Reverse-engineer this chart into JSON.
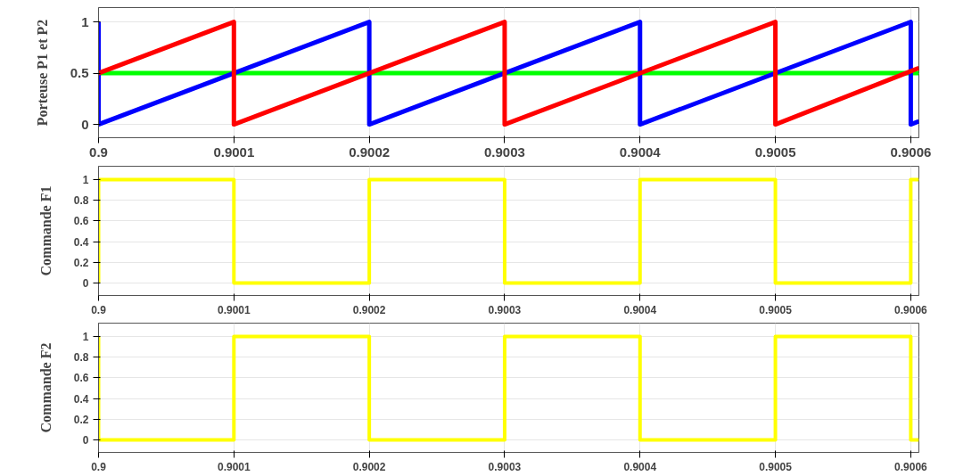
{
  "chart_data": [
    {
      "type": "line",
      "ylabel": "Porteuse P1 et P2",
      "xlim": [
        0.9,
        0.900606
      ],
      "ylim": [
        -0.13,
        1.14
      ],
      "xticks": [
        0.9,
        0.9001,
        0.9002,
        0.9003,
        0.9004,
        0.9005,
        0.9006
      ],
      "yticks": [
        0,
        0.5,
        1
      ],
      "grid": true,
      "line_style": "solid",
      "series": [
        {
          "color": "#00ff00",
          "x": [
            0.9,
            0.900606
          ],
          "values": [
            0.5,
            0.5
          ]
        },
        {
          "color": "#0000ff",
          "x": [
            0.9,
            0.9,
            0.9002,
            0.9002,
            0.9004,
            0.9004,
            0.9006,
            0.9006,
            0.900606
          ],
          "values": [
            1,
            0,
            1,
            0,
            1,
            0,
            1,
            0,
            0.03
          ]
        },
        {
          "color": "#ff0000",
          "x": [
            0.9,
            0.9001,
            0.9001,
            0.9003,
            0.9003,
            0.9005,
            0.9005,
            0.900606
          ],
          "values": [
            0.5,
            1,
            0,
            1,
            0,
            1,
            0,
            0.55
          ]
        }
      ]
    },
    {
      "type": "line",
      "ylabel": "Commande F1",
      "xlim": [
        0.9,
        0.900606
      ],
      "ylim": [
        -0.12,
        1.13
      ],
      "xticks": [
        0.9,
        0.9001,
        0.9002,
        0.9003,
        0.9004,
        0.9005,
        0.9006
      ],
      "yticks": [
        0,
        0.2,
        0.4,
        0.6,
        0.8,
        1
      ],
      "grid": true,
      "line_style": "solid",
      "series": [
        {
          "color": "#ffff00",
          "x": [
            0.9,
            0.9,
            0.9001,
            0.9001,
            0.9002,
            0.9002,
            0.9003,
            0.9003,
            0.9004,
            0.9004,
            0.9005,
            0.9005,
            0.9006,
            0.9006,
            0.900606
          ],
          "values": [
            0,
            1,
            1,
            0,
            0,
            1,
            1,
            0,
            0,
            1,
            1,
            0,
            0,
            1,
            1
          ]
        }
      ]
    },
    {
      "type": "line",
      "ylabel": "Commande F2",
      "xlim": [
        0.9,
        0.900606
      ],
      "ylim": [
        -0.12,
        1.13
      ],
      "xticks": [
        0.9,
        0.9001,
        0.9002,
        0.9003,
        0.9004,
        0.9005,
        0.9006
      ],
      "yticks": [
        0,
        0.2,
        0.4,
        0.6,
        0.8,
        1
      ],
      "grid": true,
      "line_style": "solid",
      "series": [
        {
          "color": "#ffff00",
          "x": [
            0.9,
            0.9,
            0.9001,
            0.9001,
            0.9002,
            0.9002,
            0.9003,
            0.9003,
            0.9004,
            0.9004,
            0.9005,
            0.9005,
            0.9006,
            0.9006,
            0.900606
          ],
          "values": [
            1,
            0,
            0,
            1,
            1,
            0,
            0,
            1,
            1,
            0,
            0,
            1,
            1,
            0,
            0
          ]
        }
      ]
    }
  ]
}
